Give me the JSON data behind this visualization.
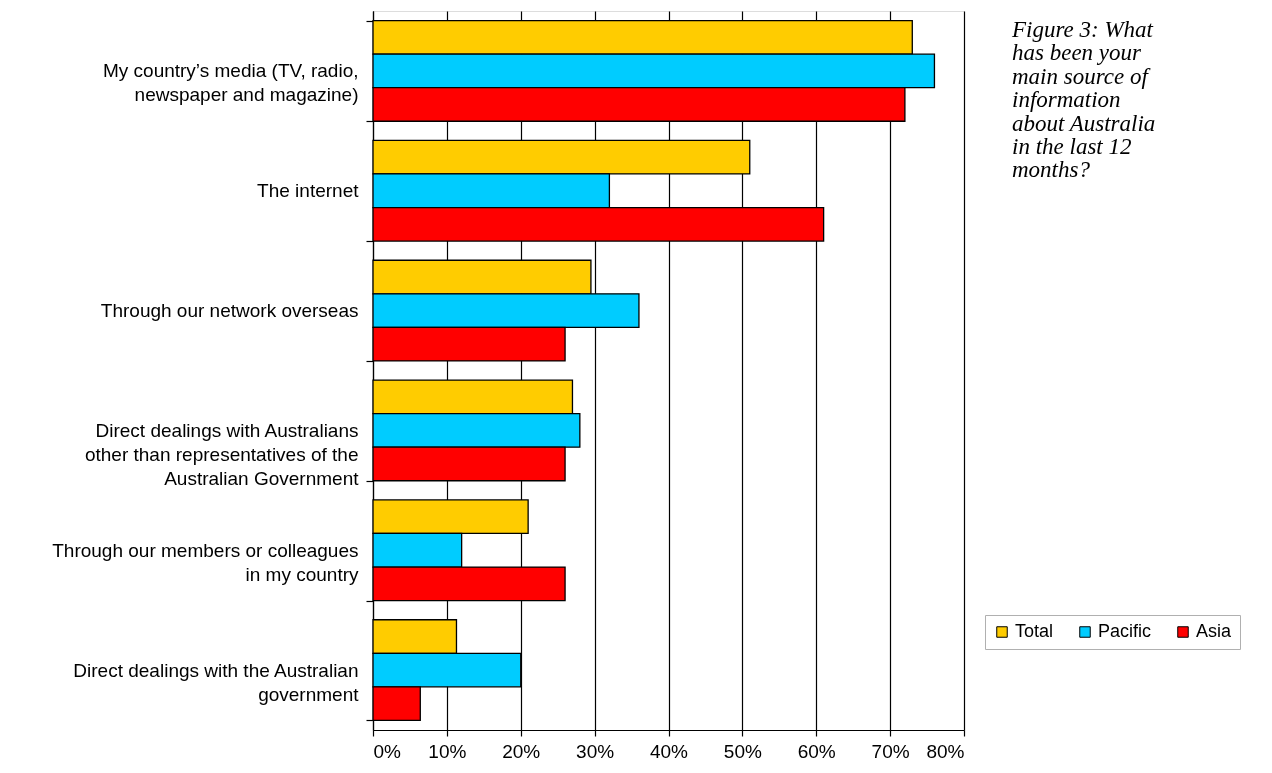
{
  "chart_data": {
    "type": "bar",
    "orientation": "horizontal",
    "categories": [
      "My country’s media (TV, radio, newspaper and magazine)",
      "The internet",
      "Through our network overseas",
      "Direct dealings with Australians other than representatives of the Australian Government",
      "Through our members or colleagues in my country",
      "Direct dealings with the Australian government"
    ],
    "series": [
      {
        "name": "Total",
        "color": "#ffcc00",
        "values": [
          73,
          51,
          29.5,
          27,
          21,
          11.3
        ]
      },
      {
        "name": "Pacific",
        "color": "#00ccff",
        "values": [
          76,
          32,
          36,
          28,
          12,
          20
        ]
      },
      {
        "name": "Asia",
        "color": "#ff0000",
        "values": [
          72,
          61,
          26,
          26,
          26,
          6.4
        ]
      }
    ],
    "xlim": [
      0,
      80
    ],
    "xticks": [
      {
        "value": 0,
        "label": "0%"
      },
      {
        "value": 10,
        "label": "10%"
      },
      {
        "value": 20,
        "label": "20%"
      },
      {
        "value": 30,
        "label": "30%"
      },
      {
        "value": 40,
        "label": "40%"
      },
      {
        "value": 50,
        "label": "50%"
      },
      {
        "value": 60,
        "label": "60%"
      },
      {
        "value": 70,
        "label": "70%"
      },
      {
        "value": 80,
        "label": "80%"
      }
    ],
    "grid": "x",
    "legend": "bottom right",
    "annotations": [
      "Figure 3: What has been your main source of information about Australia in the last 12 months?"
    ]
  }
}
